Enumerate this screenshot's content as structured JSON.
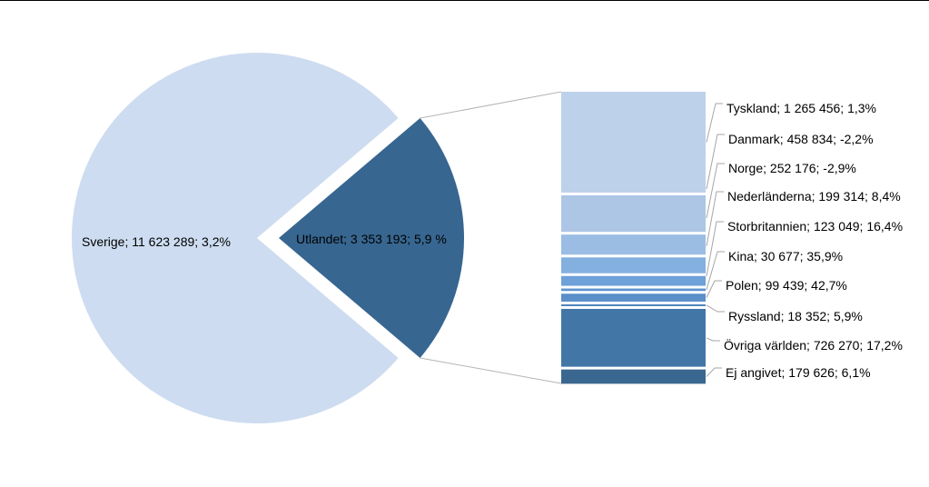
{
  "chart_data": {
    "type": "bar-of-pie",
    "title": "",
    "pie": [
      {
        "label": "Sverige",
        "value": 11623289,
        "change": "3,2%",
        "display_value": "11 623 289",
        "color": "#cddcf0",
        "exploded": false
      },
      {
        "label": "Utlandet",
        "value": 3353193,
        "change": "5,9 %",
        "display_value": "3 353 193",
        "color": "#376690",
        "exploded": true
      }
    ],
    "bar": [
      {
        "label": "Tyskland",
        "value": 1265456,
        "display_value": "1 265 456",
        "change": "1,3%",
        "color": "#bdd1ea"
      },
      {
        "label": "Danmark",
        "value": 458834,
        "display_value": "458 834",
        "change": "-2,2%",
        "color": "#adc6e6"
      },
      {
        "label": "Norge",
        "value": 252176,
        "display_value": "252 176",
        "change": "-2,9%",
        "color": "#9bbde4"
      },
      {
        "label": "Nederländerna",
        "value": 199314,
        "display_value": "199 314",
        "change": "8,4%",
        "color": "#84b0e0"
      },
      {
        "label": "Storbritannien",
        "value": 123049,
        "display_value": "123 049",
        "change": "16,4%",
        "color": "#6ea1d8"
      },
      {
        "label": "Kina",
        "value": 30677,
        "display_value": "30 677",
        "change": "35,9%",
        "color": "#5b93cf"
      },
      {
        "label": "Polen",
        "value": 99439,
        "display_value": "99 439",
        "change": "42,7%",
        "color": "#5a8fc9"
      },
      {
        "label": "Ryssland",
        "value": 18352,
        "display_value": "18 352",
        "change": "5,9%",
        "color": "#4e82bd"
      },
      {
        "label": "Övriga världen",
        "value": 726270,
        "display_value": "726 270",
        "change": "17,2%",
        "color": "#4276a6"
      },
      {
        "label": "Ej angivet",
        "value": 179626,
        "display_value": "179 626",
        "change": "6,1%",
        "color": "#3a678f"
      }
    ],
    "legend": "none",
    "label_separator": "; "
  }
}
